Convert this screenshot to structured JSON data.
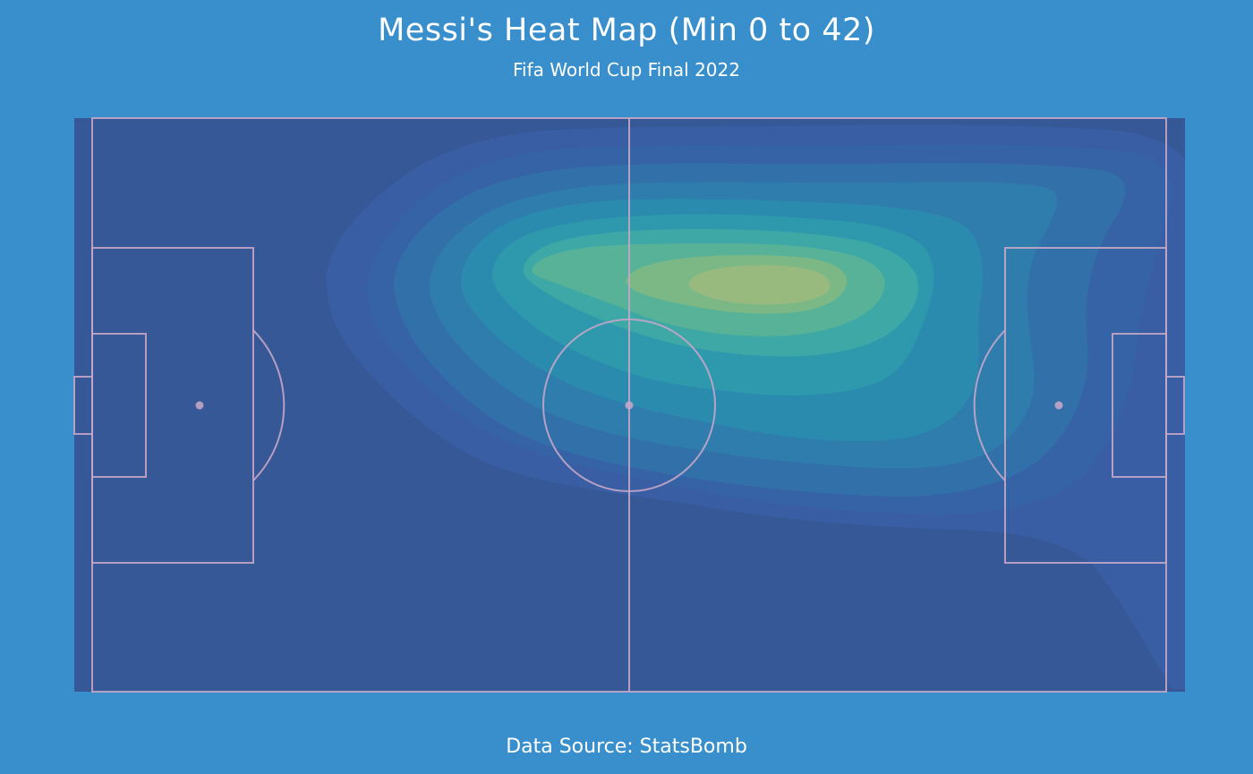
{
  "title": "Messi's Heat Map (Min 0 to 42)",
  "subtitle": "Fifa World Cup Final 2022",
  "footer": "Data Source: StatsBomb",
  "colors": {
    "background": "#388fcc",
    "pitch": "#365896",
    "lines": "#c4a6c8",
    "kde_levels": [
      "#3a5ea4",
      "#3663a6",
      "#3270aa",
      "#2f7dad",
      "#2b8bae",
      "#2e99ac",
      "#3da8a5",
      "#58b298",
      "#7cb886",
      "#98ba7f"
    ]
  },
  "chart_data": {
    "type": "heatmap",
    "title": "Messi's Heat Map (Min 0 to 42)",
    "subtitle": "Fifa World Cup Final 2022",
    "pitch": {
      "length": 120,
      "width": 80,
      "provider": "StatsBomb"
    },
    "grid": false,
    "legend": "none",
    "density_peak": {
      "x": 77,
      "y": 23
    },
    "density_region": {
      "x_range": [
        26,
        120
      ],
      "y_range": [
        3,
        58
      ]
    }
  }
}
